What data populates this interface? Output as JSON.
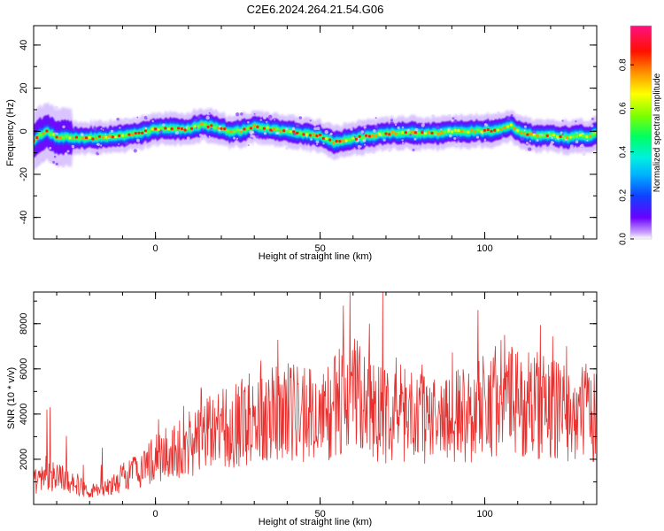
{
  "figure_title": "C2E6.2024.264.21.54.G06",
  "chart_data": [
    {
      "type": "heatmap",
      "title": "C2E6.2024.264.21.54.G06",
      "xlabel": "Height of straight line (km)",
      "ylabel": "Frequency (Hz)",
      "xlim": [
        -37,
        134
      ],
      "ylim": [
        -50,
        49
      ],
      "x_ticks": [
        0,
        50,
        100
      ],
      "y_ticks": [
        -40,
        -20,
        0,
        20,
        40
      ],
      "colorbar": {
        "label": "Normalized spectral amplitude",
        "range": [
          0,
          0.98
        ],
        "ticks": [
          0.0,
          0.2,
          0.4,
          0.6,
          0.8
        ],
        "colormap": "rainbow (purple-blue-cyan-green-yellow-red-magenta)"
      },
      "ridge": {
        "x": [
          -37,
          -33,
          -30,
          -25,
          -20,
          -15,
          -10,
          -5,
          0,
          5,
          10,
          14,
          18,
          22,
          26,
          30,
          35,
          40,
          45,
          50,
          54,
          58,
          62,
          66,
          70,
          75,
          80,
          85,
          90,
          95,
          100,
          105,
          108,
          110,
          115,
          120,
          125,
          128,
          131,
          134
        ],
        "frequency": [
          -4,
          0,
          -3,
          -3,
          -3,
          -3,
          -2,
          -1,
          1,
          1,
          1,
          3,
          2,
          0,
          0,
          2,
          1,
          0,
          -1,
          -2,
          -5,
          -4,
          -3,
          -2,
          -1,
          -1,
          -1,
          -1,
          0,
          0,
          0,
          1,
          3,
          0,
          -2,
          -2,
          -3,
          -2,
          -3,
          -1
        ]
      }
    },
    {
      "type": "line",
      "xlabel": "Height of straight line (km)",
      "ylabel": "SNR (10 * v/v)",
      "xlim": [
        -37,
        134
      ],
      "ylim": [
        0,
        9400
      ],
      "x_ticks": [
        0,
        50,
        100
      ],
      "y_ticks": [
        2000,
        4000,
        6000,
        8000
      ],
      "series_color": "#e8302e",
      "trend": {
        "x": [
          -37,
          -30,
          -25,
          -20,
          -15,
          -10,
          -5,
          0,
          5,
          10,
          15,
          20,
          25,
          30,
          35,
          40,
          45,
          50,
          55,
          60,
          65,
          70,
          75,
          80,
          85,
          90,
          95,
          100,
          105,
          110,
          115,
          120,
          125,
          130,
          134
        ],
        "y": [
          1000,
          1300,
          1000,
          600,
          700,
          1200,
          1600,
          2000,
          2300,
          2700,
          3000,
          3400,
          3600,
          3900,
          4100,
          4300,
          4100,
          3800,
          4400,
          4800,
          4400,
          4000,
          4000,
          3900,
          3800,
          3900,
          4000,
          4500,
          4800,
          4400,
          4400,
          4300,
          4100,
          4000,
          4100
        ]
      },
      "peaks": {
        "x": [
          -33,
          -32,
          57,
          59,
          62,
          65,
          69,
          73,
          98,
          106
        ],
        "y": [
          4200,
          4300,
          8800,
          9400,
          7000,
          8000,
          9400,
          6500,
          8600,
          7500
        ]
      }
    }
  ]
}
